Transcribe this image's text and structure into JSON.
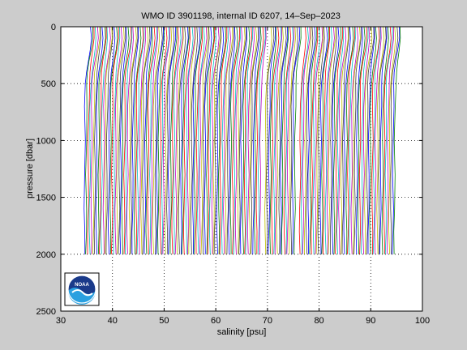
{
  "chart_data": {
    "type": "line",
    "title": "WMO ID 3901198, internal ID 6207, 14–Sep–2023",
    "xlabel": "salinity [psu]",
    "ylabel": "pressure [dbar]",
    "xlim": [
      30,
      100
    ],
    "ylim": [
      2500,
      0
    ],
    "y_reversed": true,
    "xticks": [
      30,
      40,
      50,
      60,
      70,
      80,
      90,
      100
    ],
    "yticks": [
      0,
      500,
      1000,
      1500,
      2000,
      2500
    ],
    "grid": "dotted",
    "legend": "none",
    "logo": "noaa",
    "colors": [
      "#0000ff",
      "#008000",
      "#ff0000",
      "#00bfbf",
      "#bf00bf",
      "#bfbf00",
      "#404040"
    ],
    "profile_shape": {
      "pressure_dbar": [
        0,
        100,
        200,
        300,
        400,
        500,
        700,
        1000,
        1300,
        1600,
        1800,
        2000
      ],
      "salinity_offset_psu": [
        1.15,
        1.25,
        1.0,
        0.65,
        0.35,
        0.2,
        0.1,
        0.05,
        0.02,
        0.0,
        -0.02,
        -0.03
      ]
    },
    "series_base_salinity": [
      34.6,
      34.9,
      35.3,
      35.6,
      35.9,
      36.3,
      36.6,
      36.9,
      37.3,
      37.6,
      37.9,
      38.3,
      38.6,
      38.9,
      39.3,
      39.6,
      39.9,
      40.3,
      40.6,
      40.9,
      41.3,
      41.6,
      41.9,
      42.3,
      42.6,
      42.9,
      43.3,
      43.6,
      43.9,
      44.3,
      44.6,
      44.9,
      45.3,
      45.6,
      45.9,
      46.3,
      46.6,
      46.9,
      47.3,
      47.6,
      47.9,
      48.3,
      48.6,
      48.9,
      49.3,
      49.6,
      49.9,
      50.3,
      50.6,
      50.9,
      51.3,
      51.6,
      51.9,
      52.3,
      52.6,
      52.9,
      53.3,
      53.6,
      53.9,
      54.3,
      54.6,
      54.9,
      55.3,
      55.6,
      55.9,
      56.3,
      56.6,
      56.9,
      57.3,
      57.6,
      57.9,
      58.3,
      58.6,
      58.9,
      59.3,
      59.6,
      59.9,
      60.3,
      60.6,
      60.9,
      61.3,
      61.6,
      61.9,
      62.3,
      62.6,
      62.9,
      63.3,
      63.6,
      63.9,
      64.3,
      64.6,
      64.9,
      65.3,
      65.6,
      65.9,
      66.3,
      66.6,
      66.9,
      67.3,
      67.6,
      67.9,
      68.3,
      68.6,
      69.6,
      69.9,
      70.3,
      70.6,
      70.9,
      71.3,
      71.6,
      71.9,
      72.3,
      72.6,
      72.9,
      73.3,
      73.6,
      73.9,
      74.3,
      74.6,
      74.9,
      75.3,
      76.3,
      76.6,
      76.9,
      77.3,
      77.6,
      77.9,
      78.3,
      78.6,
      78.9,
      79.3,
      79.6,
      79.9,
      80.3,
      80.6,
      80.9,
      81.3,
      81.6,
      81.9,
      82.3,
      82.6,
      82.9,
      83.3,
      83.6,
      83.9,
      84.3,
      84.6,
      84.9,
      85.3,
      85.6,
      85.9,
      86.3,
      86.6,
      86.9,
      87.3,
      87.6,
      87.9,
      88.3,
      88.6,
      88.9,
      89.3,
      89.6,
      89.9,
      90.3,
      90.6,
      90.9,
      91.3,
      91.6,
      91.9,
      92.3,
      92.6,
      92.9,
      93.3,
      93.6,
      93.9,
      94.3,
      94.6
    ]
  }
}
